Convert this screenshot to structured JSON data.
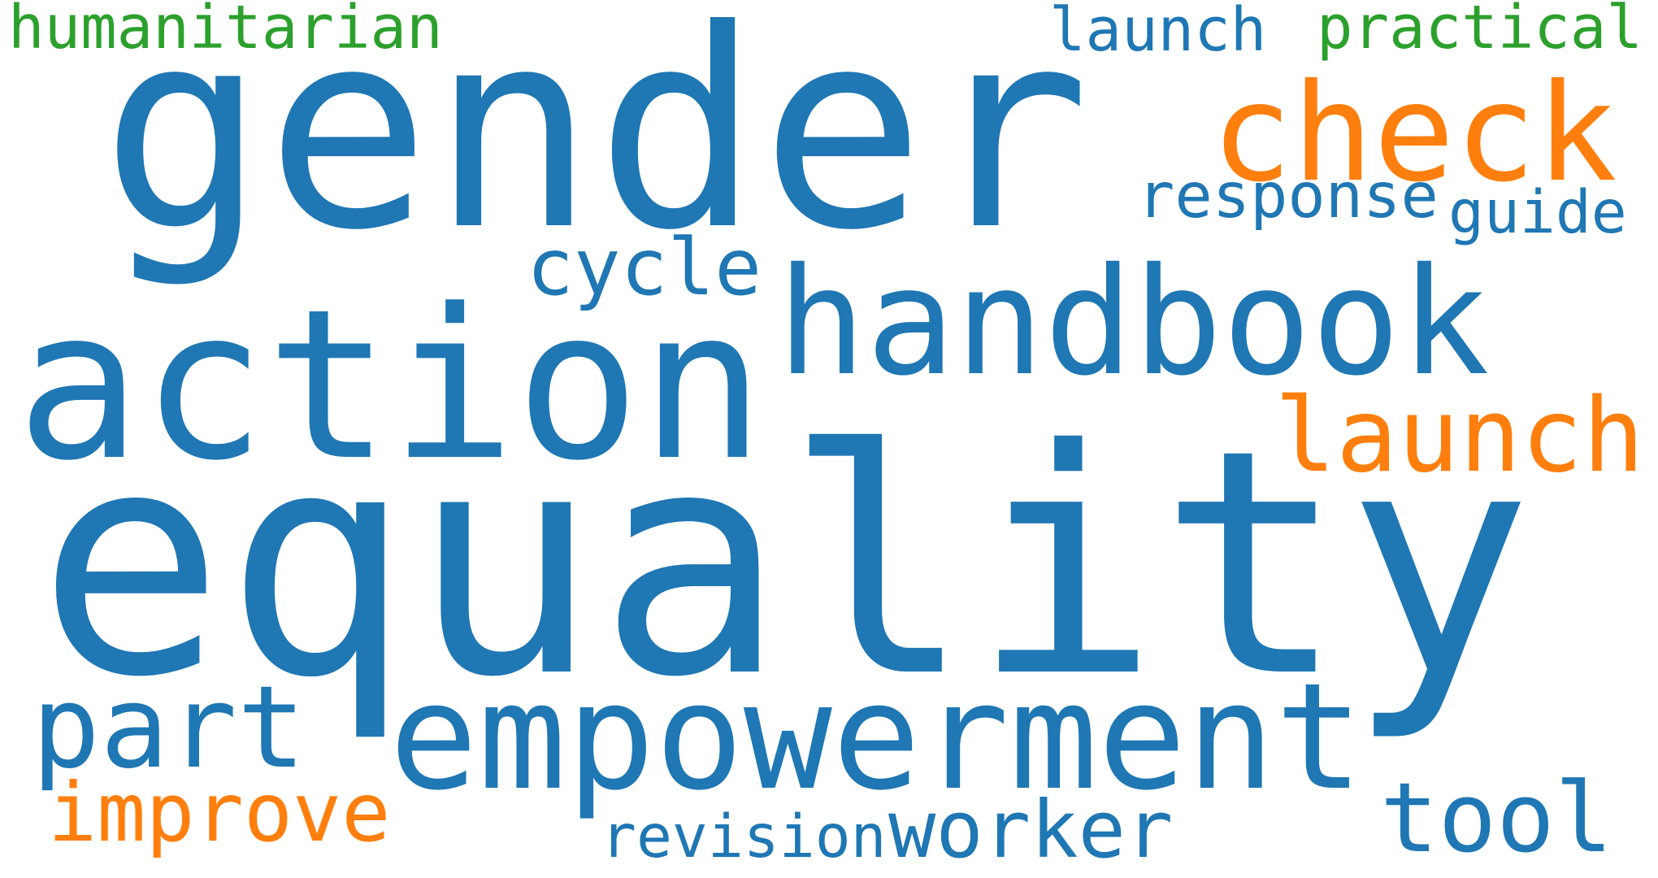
{
  "words": [
    {
      "text": "equality",
      "color": "#1f77b4"
    },
    {
      "text": "gender",
      "color": "#1f77b4"
    },
    {
      "text": "action",
      "color": "#1f77b4"
    },
    {
      "text": "handbook",
      "color": "#1f77b4"
    },
    {
      "text": "empowerment",
      "color": "#1f77b4"
    },
    {
      "text": "check",
      "color": "#ff7f0e"
    },
    {
      "text": "launch",
      "color": "#ff7f0e"
    },
    {
      "text": "part",
      "color": "#1f77b4"
    },
    {
      "text": "improve",
      "color": "#ff7f0e"
    },
    {
      "text": "tool",
      "color": "#1f77b4"
    },
    {
      "text": "worker",
      "color": "#1f77b4"
    },
    {
      "text": "revision",
      "color": "#1f77b4"
    },
    {
      "text": "cycle",
      "color": "#1f77b4"
    },
    {
      "text": "response",
      "color": "#1f77b4"
    },
    {
      "text": "guide",
      "color": "#1f77b4"
    },
    {
      "text": "humanitarian",
      "color": "#2ca02c"
    },
    {
      "text": "launch",
      "color": "#1f77b4"
    },
    {
      "text": "practical",
      "color": "#2ca02c"
    }
  ]
}
